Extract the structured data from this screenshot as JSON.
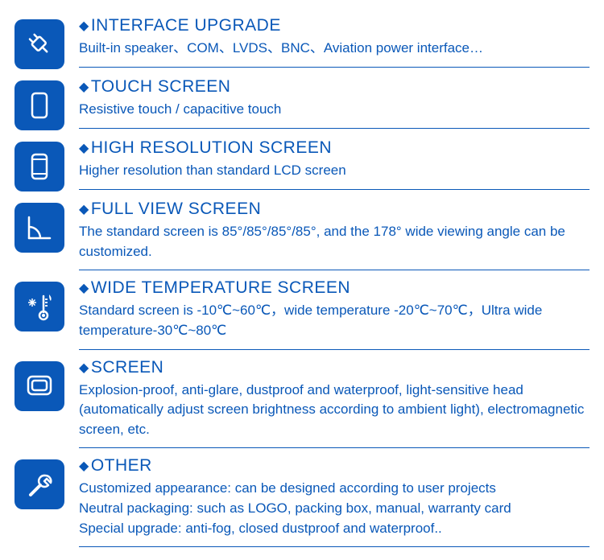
{
  "brand_color": "#0a58b8",
  "bullet": "◆",
  "items": [
    {
      "icon": "plug-icon",
      "title": "INTERFACE UPGRADE",
      "desc": "Built-in speaker、COM、LVDS、BNC、Aviation power interface…"
    },
    {
      "icon": "phone-outline-icon",
      "title": "TOUCH SCREEN",
      "desc": "Resistive touch  / capacitive touch"
    },
    {
      "icon": "phone-screen-icon",
      "title": "HIGH RESOLUTION SCREEN",
      "desc": "Higher resolution than standard LCD screen"
    },
    {
      "icon": "angle-icon",
      "title": "FULL VIEW SCREEN",
      "desc": "The standard screen is 85°/85°/85°/85°, and the 178° wide viewing angle can be customized."
    },
    {
      "icon": "thermometer-icon",
      "title": "WIDE TEMPERATURE SCREEN",
      "desc": "Standard screen is -10℃~60℃，wide temperature -20℃~70℃，Ultra wide temperature-30℃~80℃"
    },
    {
      "icon": "screen-icon",
      "title": "SCREEN",
      "desc": "Explosion-proof, anti-glare, dustproof and waterproof, light-sensitive head (automatically adjust screen brightness according to ambient light),  electromagnetic screen, etc."
    },
    {
      "icon": "wrench-icon",
      "title": "OTHER",
      "desc": "Customized appearance: can be designed according to user projects\nNeutral packaging: such as LOGO, packing box, manual, warranty card\nSpecial upgrade: anti-fog, closed dustproof and waterproof.."
    }
  ]
}
